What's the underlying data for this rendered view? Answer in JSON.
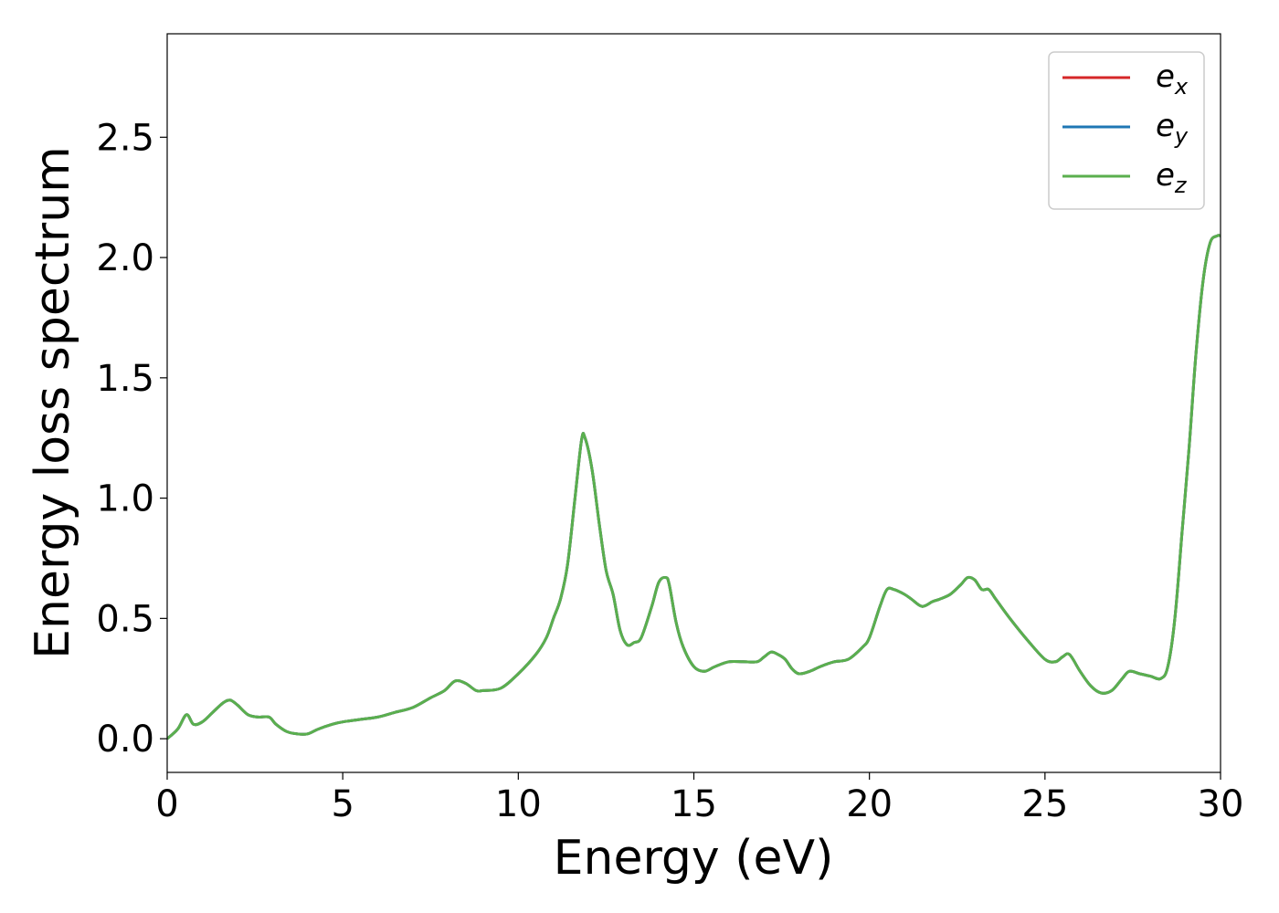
{
  "chart_data": {
    "type": "line",
    "title": "",
    "xlabel": "Energy (eV)",
    "ylabel": "Energy loss spectrum",
    "xlim": [
      0,
      30
    ],
    "ylim": [
      -0.14,
      2.93
    ],
    "xticks": [
      0,
      5,
      10,
      15,
      20,
      25,
      30
    ],
    "xtick_labels": [
      "0",
      "5",
      "10",
      "15",
      "20",
      "25",
      "30"
    ],
    "yticks": [
      0.0,
      0.5,
      1.0,
      1.5,
      2.0,
      2.5
    ],
    "ytick_labels": [
      "0.0",
      "0.5",
      "1.0",
      "1.5",
      "2.0",
      "2.5"
    ],
    "grid": false,
    "legend_position": "top-right",
    "legend": [
      {
        "base": "e",
        "sub": "x"
      },
      {
        "base": "e",
        "sub": "y"
      },
      {
        "base": "e",
        "sub": "z"
      }
    ],
    "series": [
      {
        "name": "e_x",
        "color": "#d62728",
        "x": [
          0,
          0.3,
          0.55,
          0.75,
          1.0,
          1.3,
          1.6,
          1.8,
          2.0,
          2.3,
          2.6,
          2.9,
          3.1,
          3.4,
          3.7,
          4.0,
          4.3,
          4.7,
          5.0,
          5.5,
          6.0,
          6.5,
          7.0,
          7.5,
          7.9,
          8.2,
          8.5,
          8.8,
          9.0,
          9.5,
          10.0,
          10.5,
          10.8,
          11.0,
          11.2,
          11.4,
          11.6,
          11.8,
          11.9,
          12.1,
          12.3,
          12.5,
          12.7,
          12.9,
          13.1,
          13.3,
          13.5,
          13.8,
          14.0,
          14.2,
          14.3,
          14.5,
          14.7,
          15.0,
          15.3,
          15.6,
          16.0,
          16.4,
          16.8,
          17.0,
          17.2,
          17.4,
          17.6,
          17.8,
          18.0,
          18.3,
          18.6,
          19.0,
          19.4,
          19.8,
          20.0,
          20.3,
          20.5,
          20.7,
          21.0,
          21.2,
          21.5,
          21.8,
          22.0,
          22.3,
          22.6,
          22.8,
          23.0,
          23.2,
          23.4,
          23.6,
          24.0,
          24.5,
          25.0,
          25.3,
          25.5,
          25.7,
          26.0,
          26.3,
          26.6,
          26.9,
          27.2,
          27.4,
          27.7,
          28.0,
          28.3,
          28.5,
          28.7,
          28.9,
          29.1,
          29.3,
          29.5,
          29.7,
          29.9,
          30.0
        ],
        "y": [
          0.0,
          0.04,
          0.1,
          0.06,
          0.07,
          0.11,
          0.15,
          0.16,
          0.14,
          0.1,
          0.09,
          0.09,
          0.06,
          0.03,
          0.02,
          0.02,
          0.04,
          0.06,
          0.07,
          0.08,
          0.09,
          0.11,
          0.13,
          0.17,
          0.2,
          0.24,
          0.23,
          0.2,
          0.2,
          0.21,
          0.27,
          0.35,
          0.42,
          0.5,
          0.58,
          0.72,
          0.98,
          1.24,
          1.25,
          1.12,
          0.9,
          0.7,
          0.6,
          0.45,
          0.39,
          0.4,
          0.42,
          0.55,
          0.65,
          0.67,
          0.64,
          0.48,
          0.38,
          0.3,
          0.28,
          0.3,
          0.32,
          0.32,
          0.32,
          0.34,
          0.36,
          0.35,
          0.33,
          0.29,
          0.27,
          0.28,
          0.3,
          0.32,
          0.33,
          0.38,
          0.42,
          0.55,
          0.62,
          0.62,
          0.6,
          0.58,
          0.55,
          0.57,
          0.58,
          0.6,
          0.64,
          0.67,
          0.66,
          0.62,
          0.62,
          0.58,
          0.5,
          0.41,
          0.33,
          0.32,
          0.34,
          0.35,
          0.28,
          0.22,
          0.19,
          0.2,
          0.25,
          0.28,
          0.27,
          0.26,
          0.25,
          0.3,
          0.5,
          0.85,
          1.2,
          1.6,
          1.9,
          2.06,
          2.09,
          2.09
        ]
      },
      {
        "name": "e_y",
        "color": "#1f77b4",
        "x": [
          0,
          0.3,
          0.55,
          0.75,
          1.0,
          1.3,
          1.6,
          1.8,
          2.0,
          2.3,
          2.6,
          2.9,
          3.1,
          3.4,
          3.7,
          4.0,
          4.3,
          4.7,
          5.0,
          5.5,
          6.0,
          6.5,
          7.0,
          7.5,
          7.9,
          8.2,
          8.5,
          8.8,
          9.0,
          9.5,
          10.0,
          10.5,
          10.8,
          11.0,
          11.2,
          11.4,
          11.6,
          11.8,
          11.9,
          12.1,
          12.3,
          12.5,
          12.7,
          12.9,
          13.1,
          13.3,
          13.5,
          13.8,
          14.0,
          14.2,
          14.3,
          14.5,
          14.7,
          15.0,
          15.3,
          15.6,
          16.0,
          16.4,
          16.8,
          17.0,
          17.2,
          17.4,
          17.6,
          17.8,
          18.0,
          18.3,
          18.6,
          19.0,
          19.4,
          19.8,
          20.0,
          20.3,
          20.5,
          20.7,
          21.0,
          21.2,
          21.5,
          21.8,
          22.0,
          22.3,
          22.6,
          22.8,
          23.0,
          23.2,
          23.4,
          23.6,
          24.0,
          24.5,
          25.0,
          25.3,
          25.5,
          25.7,
          26.0,
          26.3,
          26.6,
          26.9,
          27.2,
          27.4,
          27.7,
          28.0,
          28.3,
          28.5,
          28.7,
          28.9,
          29.1,
          29.3,
          29.5,
          29.7,
          29.9,
          30.0
        ],
        "y": [
          0.0,
          0.04,
          0.1,
          0.06,
          0.07,
          0.11,
          0.15,
          0.16,
          0.14,
          0.1,
          0.09,
          0.09,
          0.06,
          0.03,
          0.02,
          0.02,
          0.04,
          0.06,
          0.07,
          0.08,
          0.09,
          0.11,
          0.13,
          0.17,
          0.2,
          0.24,
          0.23,
          0.2,
          0.2,
          0.21,
          0.27,
          0.35,
          0.42,
          0.5,
          0.58,
          0.72,
          0.98,
          1.24,
          1.25,
          1.12,
          0.9,
          0.7,
          0.6,
          0.45,
          0.39,
          0.4,
          0.42,
          0.55,
          0.65,
          0.67,
          0.64,
          0.48,
          0.38,
          0.3,
          0.28,
          0.3,
          0.32,
          0.32,
          0.32,
          0.34,
          0.36,
          0.35,
          0.33,
          0.29,
          0.27,
          0.28,
          0.3,
          0.32,
          0.33,
          0.38,
          0.42,
          0.55,
          0.62,
          0.62,
          0.6,
          0.58,
          0.55,
          0.57,
          0.58,
          0.6,
          0.64,
          0.67,
          0.66,
          0.62,
          0.62,
          0.58,
          0.5,
          0.41,
          0.33,
          0.32,
          0.34,
          0.35,
          0.28,
          0.22,
          0.19,
          0.2,
          0.25,
          0.28,
          0.27,
          0.26,
          0.25,
          0.3,
          0.5,
          0.85,
          1.2,
          1.6,
          1.9,
          2.06,
          2.09,
          2.09
        ]
      },
      {
        "name": "e_z",
        "color": "#5aaf4e",
        "x": [
          0,
          0.3,
          0.55,
          0.75,
          1.0,
          1.3,
          1.6,
          1.8,
          2.0,
          2.3,
          2.6,
          2.9,
          3.1,
          3.4,
          3.7,
          4.0,
          4.3,
          4.7,
          5.0,
          5.5,
          6.0,
          6.5,
          7.0,
          7.5,
          7.9,
          8.2,
          8.5,
          8.8,
          9.0,
          9.5,
          10.0,
          10.5,
          10.8,
          11.0,
          11.2,
          11.4,
          11.6,
          11.8,
          11.9,
          12.1,
          12.3,
          12.5,
          12.7,
          12.9,
          13.1,
          13.3,
          13.5,
          13.8,
          14.0,
          14.2,
          14.3,
          14.5,
          14.7,
          15.0,
          15.3,
          15.6,
          16.0,
          16.4,
          16.8,
          17.0,
          17.2,
          17.4,
          17.6,
          17.8,
          18.0,
          18.3,
          18.6,
          19.0,
          19.4,
          19.8,
          20.0,
          20.3,
          20.5,
          20.7,
          21.0,
          21.2,
          21.5,
          21.8,
          22.0,
          22.3,
          22.6,
          22.8,
          23.0,
          23.2,
          23.4,
          23.6,
          24.0,
          24.5,
          25.0,
          25.3,
          25.5,
          25.7,
          26.0,
          26.3,
          26.6,
          26.9,
          27.2,
          27.4,
          27.7,
          28.0,
          28.3,
          28.5,
          28.7,
          28.9,
          29.1,
          29.3,
          29.5,
          29.7,
          29.9,
          30.0
        ],
        "y": [
          0.0,
          0.04,
          0.1,
          0.06,
          0.07,
          0.11,
          0.15,
          0.16,
          0.14,
          0.1,
          0.09,
          0.09,
          0.06,
          0.03,
          0.02,
          0.02,
          0.04,
          0.06,
          0.07,
          0.08,
          0.09,
          0.11,
          0.13,
          0.17,
          0.2,
          0.24,
          0.23,
          0.2,
          0.2,
          0.21,
          0.27,
          0.35,
          0.42,
          0.5,
          0.58,
          0.72,
          0.98,
          1.24,
          1.25,
          1.12,
          0.9,
          0.7,
          0.6,
          0.45,
          0.39,
          0.4,
          0.42,
          0.55,
          0.65,
          0.67,
          0.64,
          0.48,
          0.38,
          0.3,
          0.28,
          0.3,
          0.32,
          0.32,
          0.32,
          0.34,
          0.36,
          0.35,
          0.33,
          0.29,
          0.27,
          0.28,
          0.3,
          0.32,
          0.33,
          0.38,
          0.42,
          0.55,
          0.62,
          0.62,
          0.6,
          0.58,
          0.55,
          0.57,
          0.58,
          0.6,
          0.64,
          0.67,
          0.66,
          0.62,
          0.62,
          0.58,
          0.5,
          0.41,
          0.33,
          0.32,
          0.34,
          0.35,
          0.28,
          0.22,
          0.19,
          0.2,
          0.25,
          0.28,
          0.27,
          0.26,
          0.25,
          0.3,
          0.5,
          0.85,
          1.2,
          1.6,
          1.9,
          2.06,
          2.09,
          2.09
        ]
      }
    ]
  }
}
